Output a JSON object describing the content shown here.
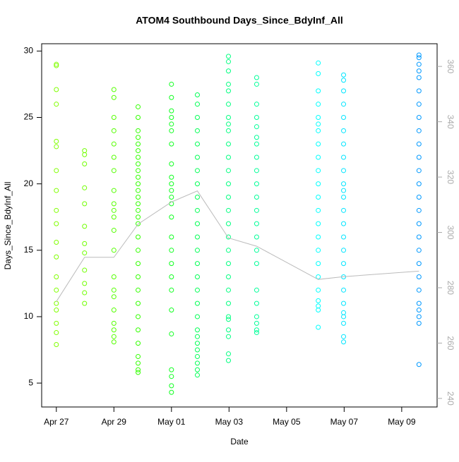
{
  "chart_data": {
    "type": "scatter",
    "title": "ATOM4 Southbound Days_Since_BdyInf_All",
    "x_label": "Date",
    "y_label": "Days_Since_BdyInf_All",
    "xlim": [
      -0.51,
      13.23
    ],
    "ylim": [
      3.2,
      30.55
    ],
    "y2lim": [
      236.9,
      368.2
    ],
    "xticks": [
      {
        "value": 0,
        "label": "Apr 27"
      },
      {
        "value": 2,
        "label": "Apr 29"
      },
      {
        "value": 4,
        "label": "May 01"
      },
      {
        "value": 6,
        "label": "May 03"
      },
      {
        "value": 8,
        "label": "May 05"
      },
      {
        "value": 10,
        "label": "May 07"
      },
      {
        "value": 12,
        "label": "May 09"
      }
    ],
    "yticks": [
      5,
      10,
      15,
      20,
      25,
      30
    ],
    "y2ticks": [
      240,
      260,
      280,
      300,
      320,
      340,
      360
    ],
    "series": [
      {
        "color": "#80ff00",
        "x": 0,
        "values": [
          29,
          28.9,
          27.1,
          26,
          23.2,
          22.8,
          21,
          19.5,
          18,
          17,
          15.6,
          14.5,
          13,
          12,
          11,
          10.5,
          9.5,
          8.8,
          7.9
        ]
      },
      {
        "color": "#70ff00",
        "x": 0.98,
        "values": [
          22.5,
          22.2,
          21.5,
          19.7,
          18.5,
          16.8,
          15.5,
          14.8,
          13.5,
          12.5,
          11.8,
          11
        ]
      },
      {
        "color": "#55ff00",
        "x": 2.0,
        "values": [
          27.1,
          26.5,
          25,
          24,
          23,
          22,
          21,
          19.5,
          18.5,
          18,
          17.5,
          16.5,
          15,
          13,
          12,
          11.5,
          10.5,
          9.5,
          9,
          8.5,
          8.1
        ]
      },
      {
        "color": "#33ff00",
        "x": 2.84,
        "values": [
          25.8,
          25,
          24,
          23.5,
          23,
          22.5,
          22,
          21.5,
          21,
          20.5,
          20,
          19.5,
          19,
          18.5,
          18,
          17.5,
          17,
          16,
          15,
          14,
          13,
          12,
          11,
          10,
          9,
          8,
          7,
          6.5,
          6,
          5.8
        ]
      },
      {
        "color": "#10ff20",
        "x": 4.0,
        "values": [
          27.5,
          26.5,
          25.5,
          25,
          24.5,
          24,
          23,
          21.5,
          20.5,
          20,
          19.5,
          19,
          18.5,
          17.5,
          16,
          15,
          14,
          13,
          12,
          10.5,
          8.7,
          6,
          5.5,
          4.8,
          4.3
        ]
      },
      {
        "color": "#00ff55",
        "x": 4.9,
        "values": [
          26.7,
          26,
          25,
          24,
          23,
          22,
          21,
          20,
          19,
          18,
          17,
          16,
          15,
          14,
          13,
          12,
          11,
          10,
          9,
          8.5,
          8,
          7.5,
          7,
          6.5,
          6,
          5.6
        ]
      },
      {
        "color": "#00ff80",
        "x": 5.98,
        "values": [
          29.6,
          29.2,
          28.5,
          27.5,
          27,
          26,
          25,
          24.5,
          24,
          23,
          22,
          21,
          20,
          19,
          18,
          17,
          16,
          15,
          14,
          13,
          12,
          11,
          10,
          9.8,
          9,
          8.5,
          7.2,
          6.7
        ]
      },
      {
        "color": "#00ff99",
        "x": 6.96,
        "values": [
          28,
          27.5,
          26,
          25,
          24.3,
          23.5,
          23,
          22,
          21,
          20,
          19,
          18,
          17,
          16,
          15,
          14,
          12,
          11,
          10,
          9.5,
          9,
          8.8
        ]
      },
      {
        "color": "#00ffff",
        "x": 9.1,
        "values": [
          29.1,
          28.3,
          27,
          26,
          25,
          24.5,
          24,
          23,
          22,
          21,
          20,
          19,
          18,
          17,
          16,
          15,
          14,
          13,
          12,
          11.2,
          10.8,
          10.5,
          9.2
        ]
      },
      {
        "color": "#00e5ff",
        "x": 9.98,
        "values": [
          28.2,
          27.8,
          27,
          26,
          25,
          24,
          23,
          22,
          21,
          20,
          19.5,
          19,
          18,
          17,
          16,
          15,
          14,
          13,
          12,
          11,
          10.3,
          10,
          9.5,
          8.5,
          8.1
        ]
      },
      {
        "color": "#0099ff",
        "x": 12.6,
        "values": [
          29.7,
          29.5,
          29,
          28.5,
          28,
          27,
          26,
          25,
          24,
          23,
          22,
          21,
          20,
          19,
          18,
          17,
          16,
          15,
          14,
          13,
          12,
          11,
          10.5,
          10,
          9.5,
          6.4
        ]
      },
      {
        "color": "#bbbbbb",
        "axis": "y2",
        "type": "line",
        "x": [
          0,
          0.98,
          2.0,
          2.84,
          4.0,
          4.9,
          5.98,
          6.96,
          9.1,
          9.98,
          12.6
        ],
        "values": [
          275,
          291,
          291,
          303,
          311,
          315,
          298,
          295,
          283,
          284,
          286
        ]
      }
    ]
  }
}
